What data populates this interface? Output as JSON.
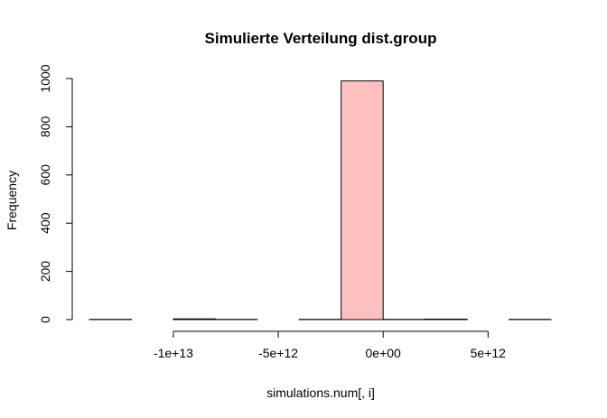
{
  "chart_data": {
    "type": "bar",
    "title": "Simulierte Verteilung dist.group",
    "xlabel": "simulations.num[, i]",
    "ylabel": "Frequency",
    "bin_width": 2000000000000,
    "bins": [
      {
        "start": -14000000000000,
        "end": -12000000000000,
        "value": 1
      },
      {
        "start": -12000000000000,
        "end": -10000000000000,
        "value": 0
      },
      {
        "start": -10000000000000,
        "end": -8000000000000,
        "value": 3
      },
      {
        "start": -8000000000000,
        "end": -6000000000000,
        "value": 1
      },
      {
        "start": -6000000000000,
        "end": -4000000000000,
        "value": 0
      },
      {
        "start": -4000000000000,
        "end": -2000000000000,
        "value": 1
      },
      {
        "start": -2000000000000,
        "end": 0,
        "value": 990
      },
      {
        "start": 0,
        "end": 2000000000000,
        "value": 1
      },
      {
        "start": 2000000000000,
        "end": 4000000000000,
        "value": 2
      },
      {
        "start": 4000000000000,
        "end": 6000000000000,
        "value": 0
      },
      {
        "start": 6000000000000,
        "end": 8000000000000,
        "value": 1
      }
    ],
    "xlim": [
      -14000000000000,
      8000000000000
    ],
    "ylim": [
      0,
      1000
    ],
    "x_ticks": [
      {
        "value": -10000000000000,
        "label": "-1e+13"
      },
      {
        "value": -5000000000000,
        "label": "-5e+12"
      },
      {
        "value": 0,
        "label": "0e+00"
      },
      {
        "value": 5000000000000,
        "label": "5e+12"
      }
    ],
    "y_ticks": [
      {
        "value": 0,
        "label": "0"
      },
      {
        "value": 200,
        "label": "200"
      },
      {
        "value": 400,
        "label": "400"
      },
      {
        "value": 600,
        "label": "600"
      },
      {
        "value": 800,
        "label": "800"
      },
      {
        "value": 1000,
        "label": "1000"
      }
    ],
    "grid": false,
    "colors": {
      "bar_fill": "#ffc0c0",
      "bar_stroke": "#000000"
    }
  }
}
